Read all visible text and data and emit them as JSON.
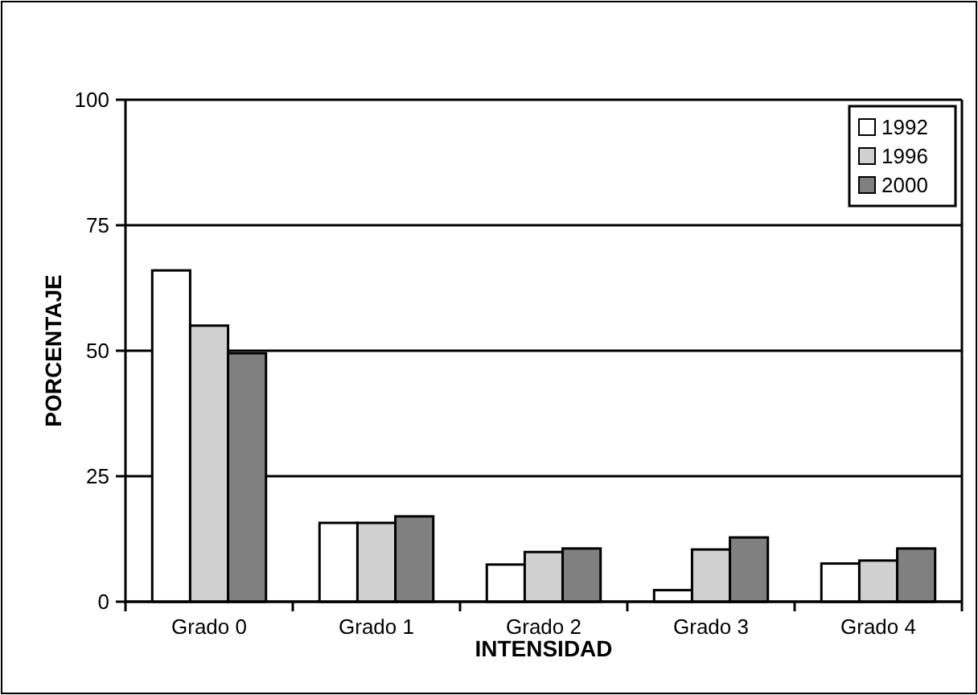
{
  "chart_data": {
    "type": "bar",
    "xlabel": "INTENSIDAD",
    "ylabel": "PORCENTAJE",
    "categories": [
      "Grado 0",
      "Grado 1",
      "Grado 2",
      "Grado 3",
      "Grado 4"
    ],
    "series": [
      {
        "name": "1992",
        "color": "#ffffff",
        "values": [
          66,
          15.7,
          7.4,
          2.3,
          7.6
        ]
      },
      {
        "name": "1996",
        "color": "#d0d0d0",
        "values": [
          55,
          15.7,
          9.9,
          10.4,
          8.2
        ]
      },
      {
        "name": "2000",
        "color": "#808080",
        "values": [
          49.5,
          17,
          10.6,
          12.8,
          10.6
        ]
      }
    ],
    "ylim": [
      0,
      100
    ],
    "yticks": [
      0,
      25,
      50,
      75,
      100
    ],
    "grid": "y",
    "legend": "top right"
  }
}
